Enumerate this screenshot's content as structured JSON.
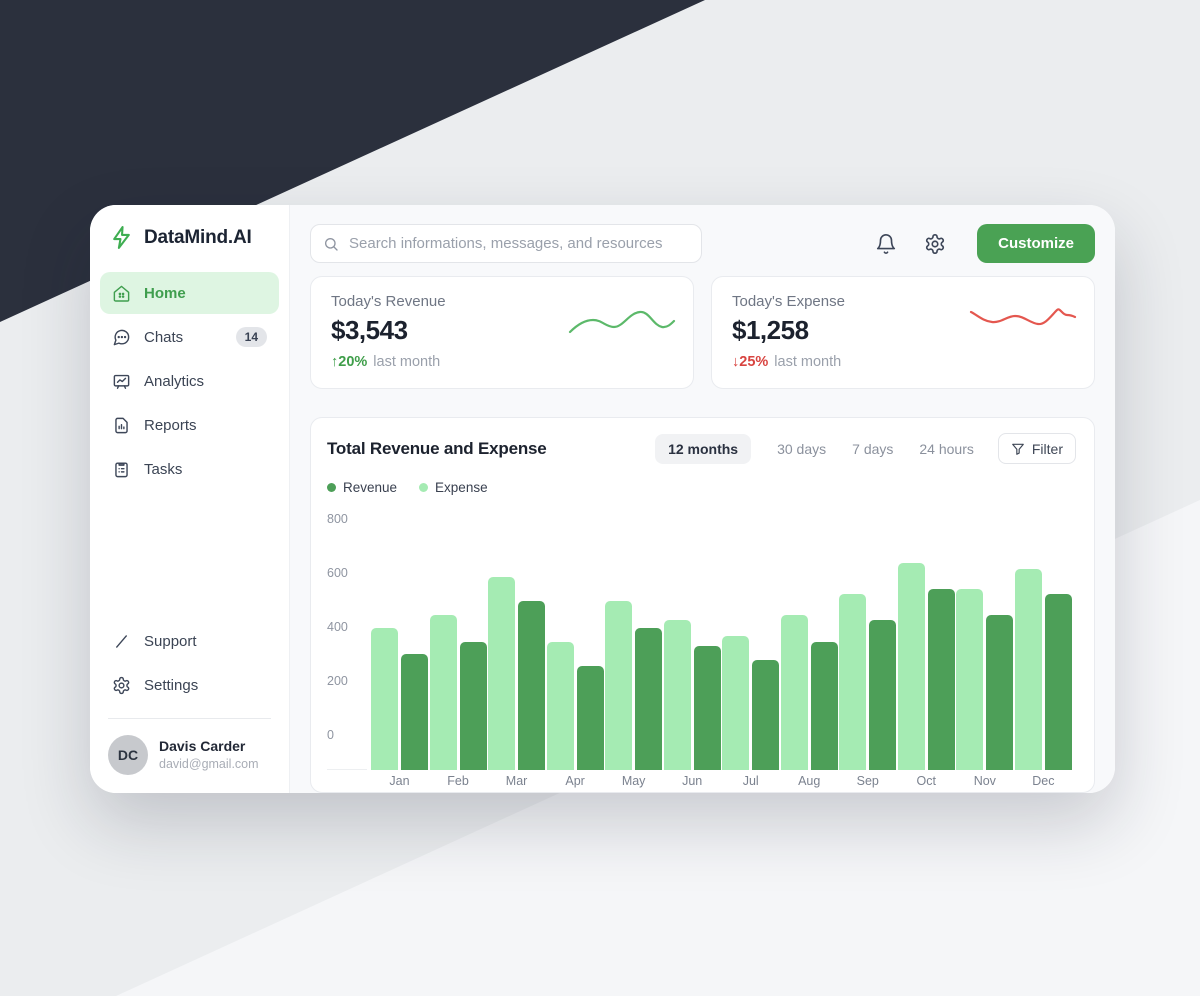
{
  "brand": {
    "name": "DataMind.AI",
    "logo_icon": "lightning-bolt-icon",
    "accent_color": "#4aa254"
  },
  "sidebar": {
    "items": [
      {
        "label": "Home",
        "icon": "home-icon",
        "active": true
      },
      {
        "label": "Chats",
        "icon": "chat-icon",
        "badge": "14"
      },
      {
        "label": "Analytics",
        "icon": "analytics-icon"
      },
      {
        "label": "Reports",
        "icon": "report-icon"
      },
      {
        "label": "Tasks",
        "icon": "tasks-icon"
      }
    ],
    "footer_items": [
      {
        "label": "Support",
        "icon": "support-icon"
      },
      {
        "label": "Settings",
        "icon": "gear-icon"
      }
    ],
    "user": {
      "initials": "DC",
      "name": "Davis Carder",
      "email": "david@gmail.com"
    }
  },
  "topbar": {
    "search_placeholder": "Search informations, messages, and resources",
    "icons": [
      "bell-icon",
      "gear-icon"
    ],
    "customize_label": "Customize"
  },
  "stats": [
    {
      "label": "Today's Revenue",
      "value": "$3,543",
      "arrow": "↑",
      "delta": "20%",
      "delta_suffix": "last month",
      "delta_color": "#3f9e4a",
      "trend_color": "#5cb96a",
      "trend": "up"
    },
    {
      "label": "Today's Expense",
      "value": "$1,258",
      "arrow": "↓",
      "delta": "25%",
      "delta_suffix": "last month",
      "delta_color": "#d84440",
      "trend_color": "#e4574f",
      "trend": "down"
    }
  ],
  "chart_card": {
    "title": "Total Revenue and Expense",
    "ranges": [
      "12 months",
      "30 days",
      "7 days",
      "24 hours"
    ],
    "active_range": "12 months",
    "filter_label": "Filter",
    "filter_icon": "funnel-icon"
  },
  "chart_data": {
    "type": "bar",
    "title": "Total Revenue and Expense",
    "categories": [
      "Jan",
      "Feb",
      "Mar",
      "Apr",
      "May",
      "Jun",
      "Jul",
      "Aug",
      "Sep",
      "Oct",
      "Nov",
      "Dec"
    ],
    "series": [
      {
        "name": "Revenue",
        "color": "#4d9f58",
        "values": [
          305,
          350,
          500,
          260,
          400,
          335,
          280,
          350,
          430,
          545,
          450,
          525
        ]
      },
      {
        "name": "Expense",
        "color": "#a5ebb3",
        "values": [
          400,
          450,
          590,
          350,
          500,
          430,
          370,
          450,
          525,
          640,
          545,
          620
        ]
      }
    ],
    "bar_order": [
      "Expense",
      "Revenue"
    ],
    "legend": [
      "Revenue",
      "Expense"
    ],
    "legend_position": "top-left",
    "y_ticks": [
      0,
      200,
      400,
      600,
      800
    ],
    "ylim": [
      0,
      800
    ],
    "grid": false
  }
}
